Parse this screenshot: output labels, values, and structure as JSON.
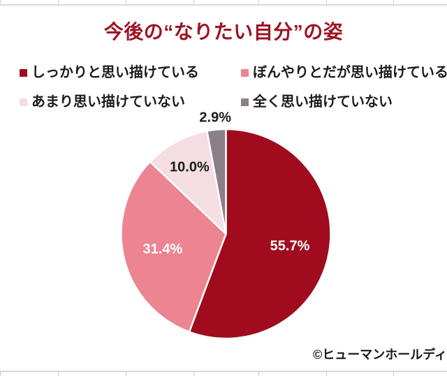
{
  "page": {
    "background": "#ffffff",
    "gridline_color": "#d9d9d9"
  },
  "chart": {
    "title": "今後の“なりたい自分”の姿",
    "title_color": "#9D1423",
    "copyright": "©ヒューマンホールディ"
  },
  "chart_data": {
    "type": "pie",
    "title": "今後の“なりたい自分”の姿",
    "start_angle_deg": 0,
    "direction": "clockwise",
    "legend_position": "top",
    "grid": false,
    "series": [
      {
        "name": "しっかりと思い描けている",
        "value": 55.7,
        "display_label": "55.7%",
        "color": "#A00C1E",
        "label_color": "#ffffff"
      },
      {
        "name": "ぼんやりとだが思い描けている",
        "value": 31.4,
        "display_label": "31.4%",
        "color": "#EC8491",
        "label_color": "#ffffff"
      },
      {
        "name": "あまり思い描けていない",
        "value": 10.0,
        "display_label": "10.0%",
        "color": "#F4DEE3",
        "label_color": "#1a1a1a"
      },
      {
        "name": "全く思い描けていない",
        "value": 2.9,
        "display_label": "2.9%",
        "color": "#8C8088",
        "label_color": "#1a1a1a"
      }
    ],
    "slice_border_color": "#ffffff"
  }
}
